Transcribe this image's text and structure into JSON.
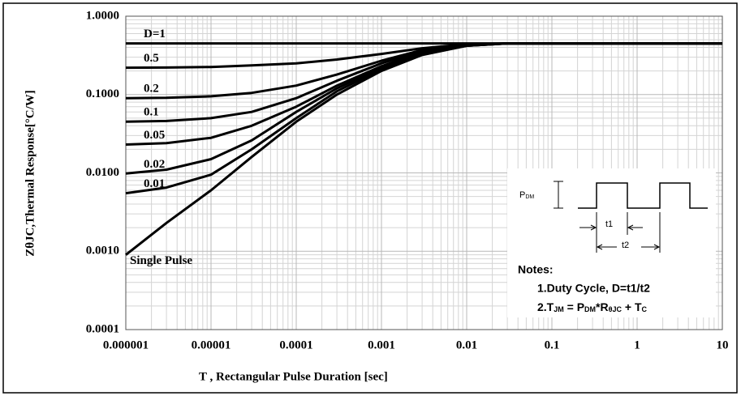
{
  "chart_data": {
    "type": "line",
    "xlabel": "T , Rectangular Pulse Duration [sec]",
    "ylabel": "ZθJC,Thermal Response[°C/W]",
    "log_x": true,
    "log_y": true,
    "grid": true,
    "minor_grid": true,
    "xlim": [
      1e-06,
      10
    ],
    "ylim": [
      0.0001,
      1
    ],
    "xticks": [
      1e-06,
      1e-05,
      0.0001,
      0.001,
      0.01,
      0.1,
      1,
      10
    ],
    "yticks": [
      {
        "value": 0.0001,
        "label": "0.0001"
      },
      {
        "value": 0.001,
        "label": "0.0010"
      },
      {
        "value": 0.01,
        "label": "0.0100"
      },
      {
        "value": 0.1,
        "label": "0.1000"
      },
      {
        "value": 1,
        "label": "1.0000"
      }
    ],
    "x": [
      1e-06,
      3e-06,
      1e-05,
      3e-05,
      0.0001,
      0.0003,
      0.001,
      0.003,
      0.01,
      0.03,
      0.1,
      1,
      10
    ],
    "series": [
      {
        "name": "D=1",
        "color": "#000000",
        "values": [
          0.45,
          0.45,
          0.45,
          0.45,
          0.45,
          0.45,
          0.45,
          0.45,
          0.45,
          0.45,
          0.45,
          0.45,
          0.45
        ]
      },
      {
        "name": "0.5",
        "color": "#000000",
        "values": [
          0.22,
          0.221,
          0.225,
          0.235,
          0.25,
          0.28,
          0.33,
          0.39,
          0.44,
          0.45,
          0.45,
          0.45,
          0.45
        ]
      },
      {
        "name": "0.2",
        "color": "#000000",
        "values": [
          0.09,
          0.091,
          0.095,
          0.105,
          0.13,
          0.18,
          0.27,
          0.37,
          0.43,
          0.45,
          0.45,
          0.45,
          0.45
        ]
      },
      {
        "name": "0.1",
        "color": "#000000",
        "values": [
          0.045,
          0.046,
          0.05,
          0.06,
          0.09,
          0.15,
          0.25,
          0.36,
          0.43,
          0.45,
          0.45,
          0.45,
          0.45
        ]
      },
      {
        "name": "0.05",
        "color": "#000000",
        "values": [
          0.023,
          0.024,
          0.028,
          0.04,
          0.07,
          0.13,
          0.23,
          0.35,
          0.43,
          0.45,
          0.45,
          0.45,
          0.45
        ]
      },
      {
        "name": "0.02",
        "color": "#000000",
        "values": [
          0.0098,
          0.011,
          0.015,
          0.026,
          0.06,
          0.12,
          0.22,
          0.34,
          0.42,
          0.45,
          0.45,
          0.45,
          0.45
        ]
      },
      {
        "name": "0.01",
        "color": "#000000",
        "values": [
          0.0055,
          0.0065,
          0.0095,
          0.02,
          0.05,
          0.11,
          0.21,
          0.33,
          0.42,
          0.45,
          0.45,
          0.45,
          0.45
        ]
      },
      {
        "name": "Single Pulse",
        "color": "#000000",
        "values": [
          0.0009,
          0.0023,
          0.006,
          0.016,
          0.045,
          0.1,
          0.2,
          0.32,
          0.42,
          0.45,
          0.45,
          0.45,
          0.45
        ]
      }
    ],
    "inset": {
      "pdm": [
        "P",
        "DM"
      ],
      "t1": "t1",
      "t2": "t2",
      "notes_title": "Notes:",
      "note1": "1.Duty  Cycle, D=t1/t2",
      "note2": [
        "2.T",
        "JM",
        " = P",
        "DM",
        "*R",
        "θJC",
        " + T",
        "C"
      ]
    }
  }
}
